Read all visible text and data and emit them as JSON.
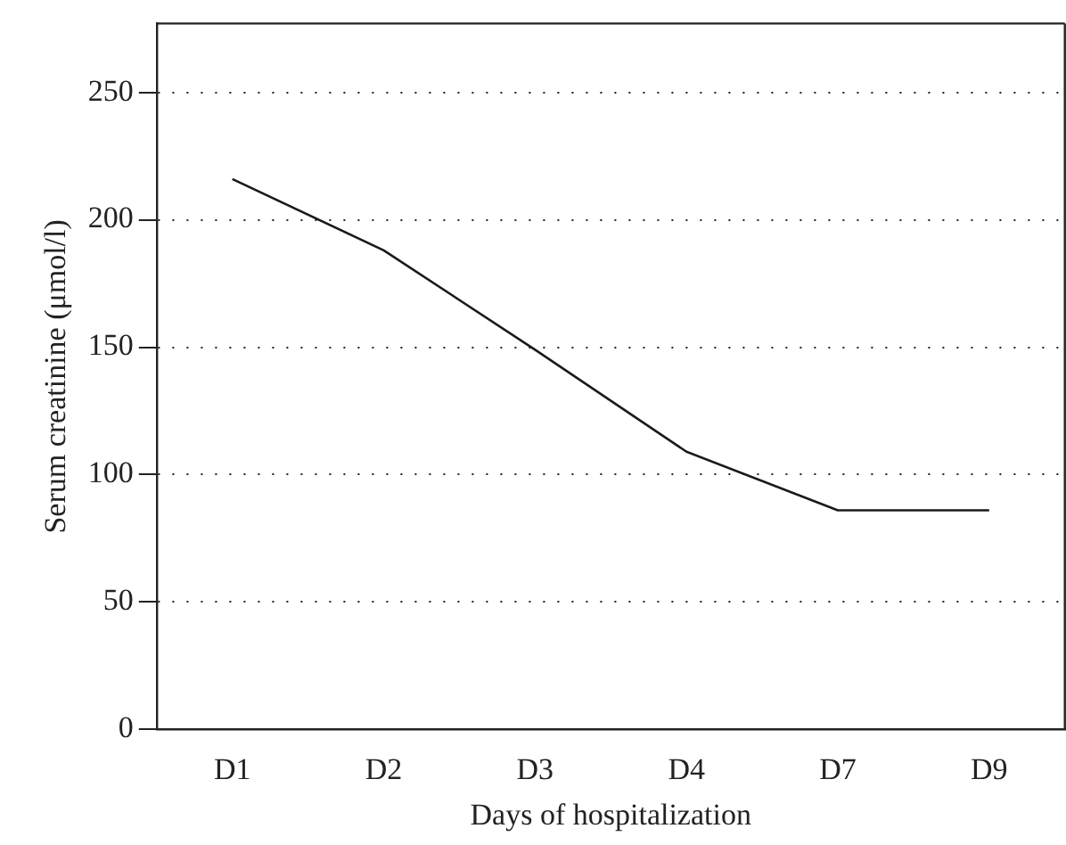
{
  "chart_data": {
    "type": "line",
    "xlabel": "Days of hospitalization",
    "ylabel": "Serum creatinine (μmol/l)",
    "categories": [
      "D1",
      "D2",
      "D3",
      "D4",
      "D7",
      "D9"
    ],
    "series": [
      {
        "color": "#1a1a1a",
        "values": [
          216,
          188,
          149,
          109,
          86,
          86
        ]
      }
    ],
    "ylim": [
      0,
      277
    ],
    "yticks": [
      0,
      50,
      100,
      150,
      200,
      250
    ],
    "grid": "y",
    "legend": false,
    "marker": "none",
    "line_style": "solid"
  }
}
